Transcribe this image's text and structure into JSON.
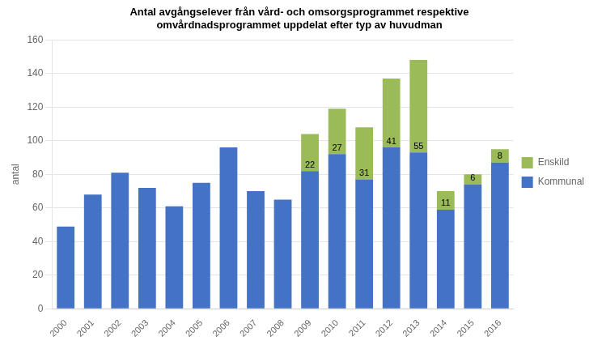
{
  "chart_data": {
    "type": "bar",
    "stacked": true,
    "title": "Antal avgångselever från vård- och omsorgsprogrammet respektive\nomvårdnadsprogrammet uppdelat efter typ av huvudman",
    "y_label": "antal",
    "categories": [
      "2000",
      "2001",
      "2002",
      "2003",
      "2004",
      "2005",
      "2006",
      "2007",
      "2008",
      "2009",
      "2010",
      "2011",
      "2012",
      "2013",
      "2014",
      "2015",
      "2016"
    ],
    "series": [
      {
        "name": "Kommunal",
        "color": "#4472C4",
        "values": [
          49,
          68,
          81,
          72,
          61,
          75,
          96,
          70,
          65,
          82,
          92,
          77,
          96,
          93,
          59,
          74,
          87
        ]
      },
      {
        "name": "Enskild",
        "color": "#9BBB59",
        "data_labels": true,
        "values": [
          0,
          0,
          0,
          0,
          0,
          0,
          0,
          0,
          0,
          22,
          27,
          31,
          41,
          55,
          11,
          6,
          8
        ]
      }
    ],
    "ylim": [
      0,
      160
    ],
    "yticks": [
      0,
      20,
      40,
      60,
      80,
      100,
      120,
      140,
      160
    ],
    "grid": "y",
    "legend": "right"
  }
}
